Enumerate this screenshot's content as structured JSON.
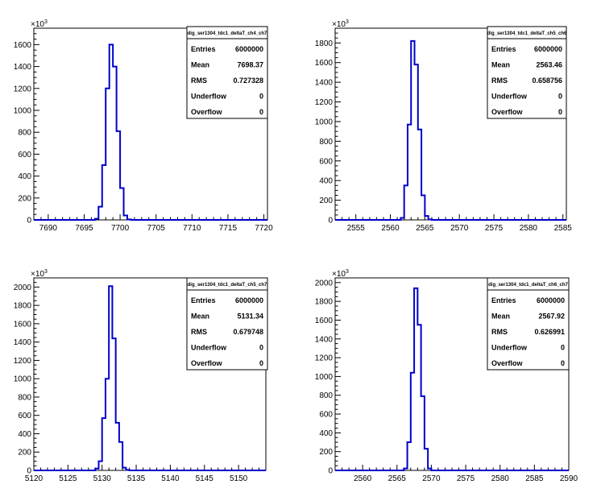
{
  "chart_data": [
    {
      "type": "histogram",
      "title": "",
      "stats": {
        "name": "dig_ser1304_tdc1_deltaT_ch4_ch7",
        "rows": [
          {
            "label": "Entries",
            "value": "6000000"
          },
          {
            "label": "Mean",
            "value": "7698.37"
          },
          {
            "label": "RMS",
            "value": "0.727328"
          },
          {
            "label": "Underflow",
            "value": "0"
          },
          {
            "label": "Overflow",
            "value": "0"
          }
        ]
      },
      "xlim": [
        7688,
        7720.5
      ],
      "ylim": [
        0,
        1750
      ],
      "y_multiplier": "×10³",
      "xticks": [
        7690,
        7695,
        7700,
        7705,
        7710,
        7715,
        7720
      ],
      "yticks": [
        0,
        200,
        400,
        600,
        800,
        1000,
        1200,
        1400,
        1600
      ],
      "bins": [
        {
          "lo": 7696.5,
          "hi": 7697.0,
          "value": 10
        },
        {
          "lo": 7697.0,
          "hi": 7697.5,
          "value": 120
        },
        {
          "lo": 7697.5,
          "hi": 7698.0,
          "value": 500
        },
        {
          "lo": 7698.0,
          "hi": 7698.5,
          "value": 1200
        },
        {
          "lo": 7698.5,
          "hi": 7699.0,
          "value": 1600
        },
        {
          "lo": 7699.0,
          "hi": 7699.5,
          "value": 1400
        },
        {
          "lo": 7699.5,
          "hi": 7700.0,
          "value": 810
        },
        {
          "lo": 7700.0,
          "hi": 7700.5,
          "value": 290
        },
        {
          "lo": 7700.5,
          "hi": 7701.0,
          "value": 40
        },
        {
          "lo": 7701.0,
          "hi": 7701.5,
          "value": 5
        }
      ]
    },
    {
      "type": "histogram",
      "title": "",
      "stats": {
        "name": "dig_ser1304_tdc1_deltaT_ch5_ch6",
        "rows": [
          {
            "label": "Entries",
            "value": "6000000"
          },
          {
            "label": "Mean",
            "value": "2563.46"
          },
          {
            "label": "RMS",
            "value": "0.658756"
          },
          {
            "label": "Underflow",
            "value": "0"
          },
          {
            "label": "Overflow",
            "value": "0"
          }
        ]
      },
      "xlim": [
        2552,
        2585.5
      ],
      "ylim": [
        0,
        1950
      ],
      "y_multiplier": "×10³",
      "xticks": [
        2555,
        2560,
        2565,
        2570,
        2575,
        2580,
        2585
      ],
      "yticks": [
        0,
        200,
        400,
        600,
        800,
        1000,
        1200,
        1400,
        1600,
        1800
      ],
      "bins": [
        {
          "lo": 2561.5,
          "hi": 2562.0,
          "value": 20
        },
        {
          "lo": 2562.0,
          "hi": 2562.5,
          "value": 350
        },
        {
          "lo": 2562.5,
          "hi": 2563.0,
          "value": 970
        },
        {
          "lo": 2563.0,
          "hi": 2563.5,
          "value": 1820
        },
        {
          "lo": 2563.5,
          "hi": 2564.0,
          "value": 1580
        },
        {
          "lo": 2564.0,
          "hi": 2564.5,
          "value": 920
        },
        {
          "lo": 2564.5,
          "hi": 2565.0,
          "value": 250
        },
        {
          "lo": 2565.0,
          "hi": 2565.5,
          "value": 40
        },
        {
          "lo": 2565.5,
          "hi": 2566.0,
          "value": 5
        }
      ]
    },
    {
      "type": "histogram",
      "title": "",
      "stats": {
        "name": "dig_ser1304_tdc1_deltaT_ch5_ch7",
        "rows": [
          {
            "label": "Entries",
            "value": "6000000"
          },
          {
            "label": "Mean",
            "value": "5131.34"
          },
          {
            "label": "RMS",
            "value": "0.679748"
          },
          {
            "label": "Underflow",
            "value": "0"
          },
          {
            "label": "Overflow",
            "value": "0"
          }
        ]
      },
      "xlim": [
        5120,
        5154
      ],
      "ylim": [
        0,
        2100
      ],
      "y_multiplier": "×10³",
      "xticks": [
        5120,
        5125,
        5130,
        5135,
        5140,
        5145,
        5150
      ],
      "yticks": [
        0,
        200,
        400,
        600,
        800,
        1000,
        1200,
        1400,
        1600,
        1800,
        2000
      ],
      "bins": [
        {
          "lo": 5129.0,
          "hi": 5129.5,
          "value": 20
        },
        {
          "lo": 5129.5,
          "hi": 5130.0,
          "value": 100
        },
        {
          "lo": 5130.0,
          "hi": 5130.5,
          "value": 570
        },
        {
          "lo": 5130.5,
          "hi": 5131.0,
          "value": 1000
        },
        {
          "lo": 5131.0,
          "hi": 5131.5,
          "value": 2010
        },
        {
          "lo": 5131.5,
          "hi": 5132.0,
          "value": 1440
        },
        {
          "lo": 5132.0,
          "hi": 5132.5,
          "value": 520
        },
        {
          "lo": 5132.5,
          "hi": 5133.0,
          "value": 310
        },
        {
          "lo": 5133.0,
          "hi": 5133.5,
          "value": 30
        },
        {
          "lo": 5133.5,
          "hi": 5134.0,
          "value": 5
        }
      ]
    },
    {
      "type": "histogram",
      "title": "",
      "stats": {
        "name": "dig_ser1304_tdc1_deltaT_ch6_ch7",
        "rows": [
          {
            "label": "Entries",
            "value": "6000000"
          },
          {
            "label": "Mean",
            "value": "2567.92"
          },
          {
            "label": "RMS",
            "value": "0.626991"
          },
          {
            "label": "Underflow",
            "value": "0"
          },
          {
            "label": "Overflow",
            "value": "0"
          }
        ]
      },
      "xlim": [
        2556,
        2590
      ],
      "ylim": [
        0,
        2050
      ],
      "y_multiplier": "×10³",
      "xticks": [
        2560,
        2565,
        2570,
        2575,
        2580,
        2585,
        2590
      ],
      "yticks": [
        0,
        200,
        400,
        600,
        800,
        1000,
        1200,
        1400,
        1600,
        1800,
        2000
      ],
      "bins": [
        {
          "lo": 2566.0,
          "hi": 2566.5,
          "value": 20
        },
        {
          "lo": 2566.5,
          "hi": 2567.0,
          "value": 300
        },
        {
          "lo": 2567.0,
          "hi": 2567.5,
          "value": 1040
        },
        {
          "lo": 2567.5,
          "hi": 2568.0,
          "value": 1940
        },
        {
          "lo": 2568.0,
          "hi": 2568.5,
          "value": 1550
        },
        {
          "lo": 2568.5,
          "hi": 2569.0,
          "value": 790
        },
        {
          "lo": 2569.0,
          "hi": 2569.5,
          "value": 230
        },
        {
          "lo": 2569.5,
          "hi": 2570.0,
          "value": 20
        }
      ]
    }
  ]
}
